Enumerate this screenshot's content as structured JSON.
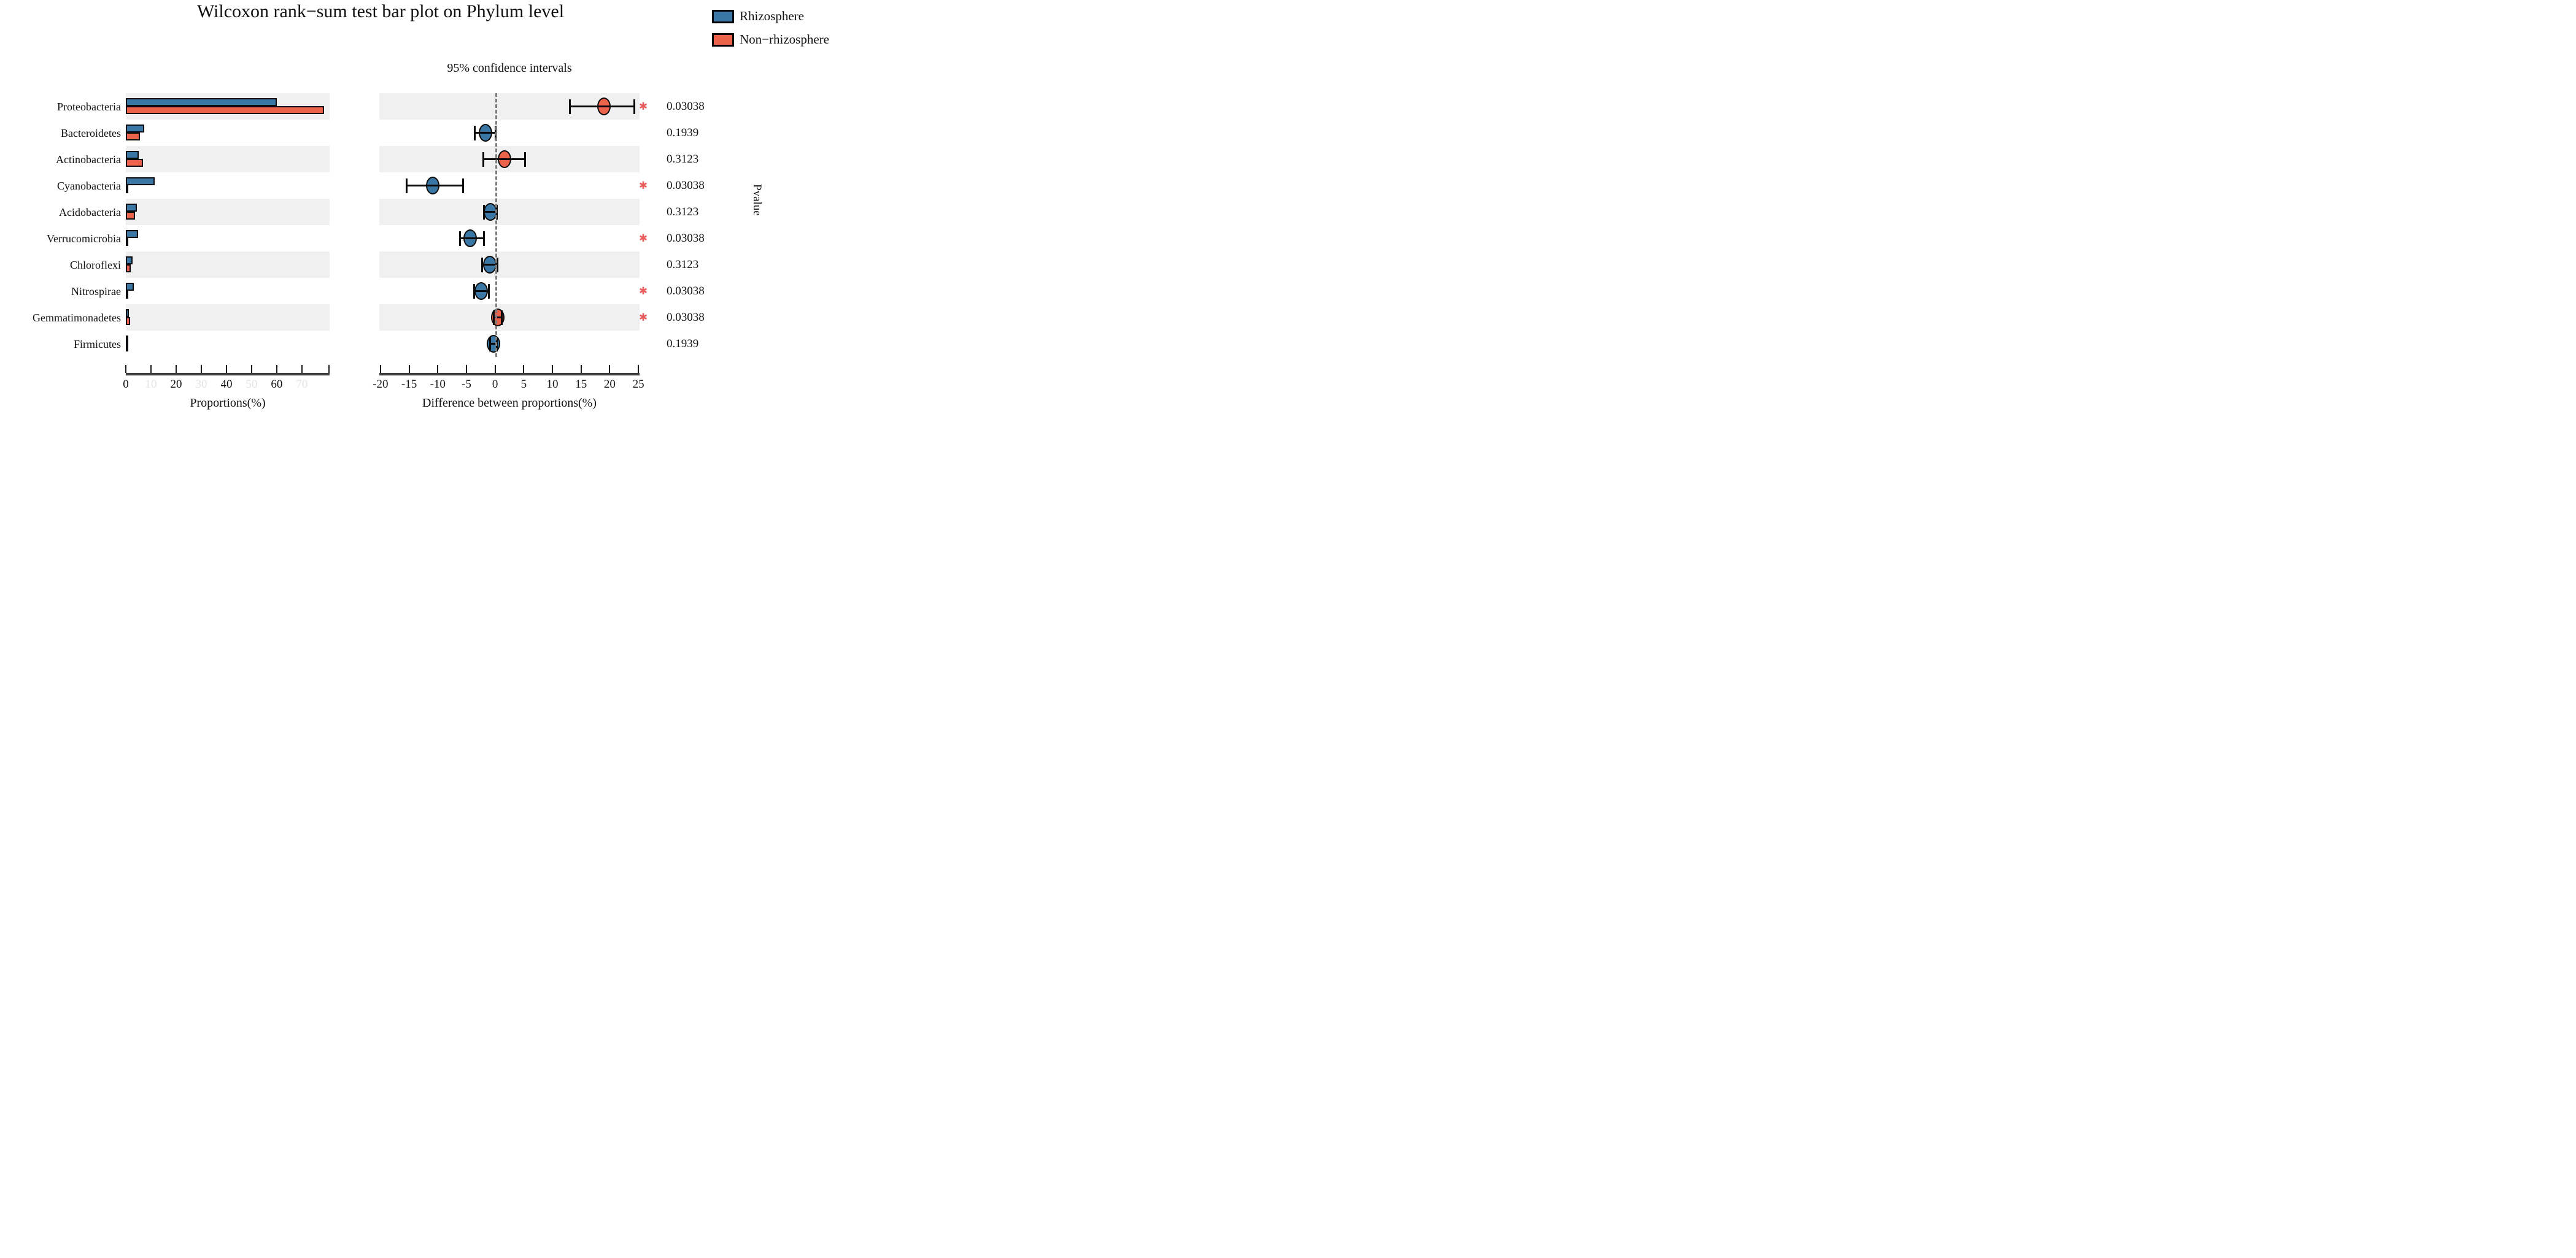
{
  "title": "Wilcoxon rank−sum test bar plot on Phylum level",
  "legend": {
    "items": [
      {
        "label": "Rhizosphere",
        "color": "#3B77A5"
      },
      {
        "label": "Non−rhizosphere",
        "color": "#EB634A"
      }
    ]
  },
  "panels": {
    "proportions": {
      "xlabel": "Proportions(%)",
      "ticks": [
        "0",
        "10",
        "20",
        "30",
        "40",
        "50",
        "60",
        "70"
      ],
      "faded_ticks": [
        "10",
        "30",
        "50",
        "70"
      ]
    },
    "difference": {
      "subtitle": "95% confidence intervals",
      "xlabel": "Difference between proportions(%)",
      "ticks": [
        "-20",
        "-15",
        "-10",
        "-5",
        "0",
        "5",
        "10",
        "15",
        "20",
        "25"
      ]
    },
    "pvalue_label": "Pvalue"
  },
  "style": {
    "bar_blue": "#3B77A5",
    "bar_red": "#EB634A",
    "band_color": "#F0F0F0",
    "asterisk_color": "#E85D5D",
    "significance_marker": "✱"
  },
  "chart_data": {
    "type": "bar",
    "title": "Wilcoxon rank−sum test bar plot on Phylum level",
    "categories": [
      "Proteobacteria",
      "Bacteroidetes",
      "Actinobacteria",
      "Cyanobacteria",
      "Acidobacteria",
      "Verrucomicrobia",
      "Chloroflexi",
      "Nitrospirae",
      "Gemmatimonadetes",
      "Firmicutes"
    ],
    "series": [
      {
        "name": "Rhizosphere",
        "color": "#3B77A5",
        "values": [
          59.9,
          7.2,
          5.2,
          11.4,
          4.5,
          4.8,
          2.7,
          3.1,
          1.2,
          0.8
        ]
      },
      {
        "name": "Non−rhizosphere",
        "color": "#EB634A",
        "values": [
          78.9,
          5.5,
          6.8,
          0.5,
          3.7,
          0.5,
          1.9,
          0.7,
          1.7,
          0.5
        ]
      }
    ],
    "proportions_axis": {
      "xlabel": "Proportions(%)",
      "xlim": [
        0,
        81
      ],
      "ticks": [
        0,
        10,
        20,
        30,
        40,
        50,
        60,
        70
      ]
    },
    "difference_axis": {
      "xlabel": "Difference between proportions(%)",
      "xlim": [
        -20.2,
        25.2
      ],
      "ticks": [
        -20,
        -15,
        -10,
        -5,
        0,
        5,
        10,
        15,
        20,
        25
      ],
      "zero_line": true
    },
    "rows": [
      {
        "category": "Proteobacteria",
        "diff_mean": 19.0,
        "ci_low": 13.0,
        "ci_high": 24.3,
        "dot_series": "Non−rhizosphere",
        "pvalue": "0.03038",
        "significant": true
      },
      {
        "category": "Bacteroidetes",
        "diff_mean": -1.7,
        "ci_low": -3.6,
        "ci_high": 0.1,
        "dot_series": "Rhizosphere",
        "pvalue": "0.1939",
        "significant": false
      },
      {
        "category": "Actinobacteria",
        "diff_mean": 1.6,
        "ci_low": -2.1,
        "ci_high": 5.2,
        "dot_series": "Non−rhizosphere",
        "pvalue": "0.3123",
        "significant": false
      },
      {
        "category": "Cyanobacteria",
        "diff_mean": -10.9,
        "ci_low": -15.4,
        "ci_high": -5.6,
        "dot_series": "Rhizosphere",
        "pvalue": "0.03038",
        "significant": true
      },
      {
        "category": "Acidobacteria",
        "diff_mean": -0.8,
        "ci_low": -1.9,
        "ci_high": 0.3,
        "dot_series": "Rhizosphere",
        "pvalue": "0.3123",
        "significant": false
      },
      {
        "category": "Verrucomicrobia",
        "diff_mean": -4.3,
        "ci_low": -6.1,
        "ci_high": -1.9,
        "dot_series": "Rhizosphere",
        "pvalue": "0.03038",
        "significant": true
      },
      {
        "category": "Chloroflexi",
        "diff_mean": -0.9,
        "ci_low": -2.3,
        "ci_high": 0.4,
        "dot_series": "Rhizosphere",
        "pvalue": "0.3123",
        "significant": false
      },
      {
        "category": "Nitrospirae",
        "diff_mean": -2.4,
        "ci_low": -3.7,
        "ci_high": -1.1,
        "dot_series": "Rhizosphere",
        "pvalue": "0.03038",
        "significant": true
      },
      {
        "category": "Gemmatimonadetes",
        "diff_mean": 0.5,
        "ci_low": -0.2,
        "ci_high": 1.2,
        "dot_series": "Non−rhizosphere",
        "pvalue": "0.03038",
        "significant": true
      },
      {
        "category": "Firmicutes",
        "diff_mean": -0.3,
        "ci_low": -0.9,
        "ci_high": 0.3,
        "dot_series": "Rhizosphere",
        "pvalue": "0.1939",
        "significant": false
      }
    ]
  }
}
